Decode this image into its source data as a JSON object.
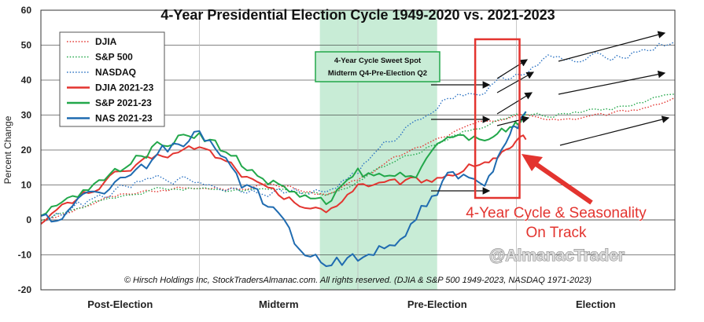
{
  "chart_data": {
    "type": "line",
    "title": "4-Year Presidential Election Cycle 1949-2020 vs. 2021-2023",
    "ylabel": "Percent Change",
    "ylim": [
      -20,
      60
    ],
    "yticks": [
      -20,
      -10,
      0,
      10,
      20,
      30,
      40,
      50,
      60
    ],
    "periods": [
      "Post-Election",
      "Midterm",
      "Pre-Election",
      "Election"
    ],
    "x_range": [
      0,
      1
    ],
    "legend_position": "top-left",
    "shaded_window": {
      "x_start": 0.44,
      "x_end": 0.625,
      "color": "#c8ecd6",
      "label_line1": "4-Year Cycle Sweet Spot",
      "label_line2": "Midterm Q4-Pre-Election Q2"
    },
    "highlight_box": {
      "x_start": 0.685,
      "x_end": 0.755,
      "color": "#e3342f"
    },
    "callout_lines": [
      "4-Year Cycle & Seasonality",
      "On Track"
    ],
    "source_note": "© Hirsch Holdings Inc, StockTradersAlmanac.com. All rights reserved. (DJIA & S&P 500 1949-2023, NASDAQ 1971-2023)",
    "watermark": "@AlmanacTrader",
    "series": [
      {
        "name": "DJIA",
        "color": "#e3342f",
        "style": "dotted",
        "width": 1.4,
        "x": [
          0,
          0.05,
          0.1,
          0.15,
          0.2,
          0.25,
          0.3,
          0.35,
          0.4,
          0.45,
          0.5,
          0.55,
          0.6,
          0.65,
          0.7,
          0.75,
          0.8,
          0.85,
          0.9,
          0.95,
          1.0
        ],
        "values": [
          0,
          3,
          6,
          8,
          9,
          9,
          9,
          10,
          9,
          7,
          11,
          17,
          21,
          25,
          28,
          30,
          29,
          29,
          30,
          32,
          35
        ],
        "noise": 0.5
      },
      {
        "name": "S&P 500",
        "color": "#22a74a",
        "style": "dotted",
        "width": 1.4,
        "x": [
          0,
          0.05,
          0.1,
          0.15,
          0.2,
          0.25,
          0.3,
          0.35,
          0.4,
          0.45,
          0.5,
          0.55,
          0.6,
          0.65,
          0.7,
          0.75,
          0.8,
          0.85,
          0.9,
          0.95,
          1.0
        ],
        "values": [
          0,
          3,
          6,
          8,
          9,
          9,
          8,
          9,
          8,
          7,
          11,
          16,
          20,
          24,
          27,
          30,
          30,
          31,
          32,
          34,
          36
        ],
        "noise": 0.5
      },
      {
        "name": "NASDAQ",
        "color": "#2b72c2",
        "style": "dotted",
        "width": 1.4,
        "x": [
          0,
          0.05,
          0.1,
          0.15,
          0.2,
          0.25,
          0.3,
          0.35,
          0.4,
          0.45,
          0.5,
          0.55,
          0.6,
          0.65,
          0.7,
          0.75,
          0.8,
          0.85,
          0.9,
          0.95,
          1.0
        ],
        "values": [
          0,
          3,
          7,
          10,
          12,
          11,
          9,
          9,
          8,
          8,
          14,
          22,
          30,
          36,
          37,
          42,
          46,
          45,
          47,
          49,
          51
        ],
        "noise": 1.2
      },
      {
        "name": "DJIA 2021-23",
        "color": "#e3342f",
        "style": "solid",
        "width": 2,
        "x": [
          0,
          0.05,
          0.1,
          0.15,
          0.2,
          0.25,
          0.3,
          0.35,
          0.4,
          0.45,
          0.5,
          0.55,
          0.6,
          0.65,
          0.7,
          0.74,
          0.765
        ],
        "values": [
          0,
          5,
          11,
          15,
          19,
          21,
          16,
          9,
          5,
          2,
          11,
          10,
          11,
          14,
          17,
          20,
          23
        ],
        "noise": 1.2
      },
      {
        "name": "S&P 2021-23",
        "color": "#22a74a",
        "style": "solid",
        "width": 2,
        "x": [
          0,
          0.05,
          0.1,
          0.15,
          0.2,
          0.25,
          0.3,
          0.35,
          0.4,
          0.45,
          0.5,
          0.55,
          0.6,
          0.65,
          0.7,
          0.74,
          0.765
        ],
        "values": [
          0,
          6,
          11,
          18,
          23,
          26,
          18,
          12,
          8,
          4,
          13,
          12,
          15,
          24,
          22,
          27,
          31
        ],
        "noise": 1.6
      },
      {
        "name": "NAS 2021-23",
        "color": "#1f6bb0",
        "style": "solid",
        "width": 2,
        "x": [
          0,
          0.05,
          0.1,
          0.15,
          0.2,
          0.25,
          0.3,
          0.35,
          0.4,
          0.45,
          0.5,
          0.55,
          0.6,
          0.65,
          0.7,
          0.74,
          0.765
        ],
        "values": [
          0,
          2,
          10,
          14,
          20,
          24,
          14,
          4,
          -6,
          -11,
          -12,
          -6,
          3,
          14,
          8,
          24,
          31
        ],
        "noise": 2.2
      }
    ]
  }
}
